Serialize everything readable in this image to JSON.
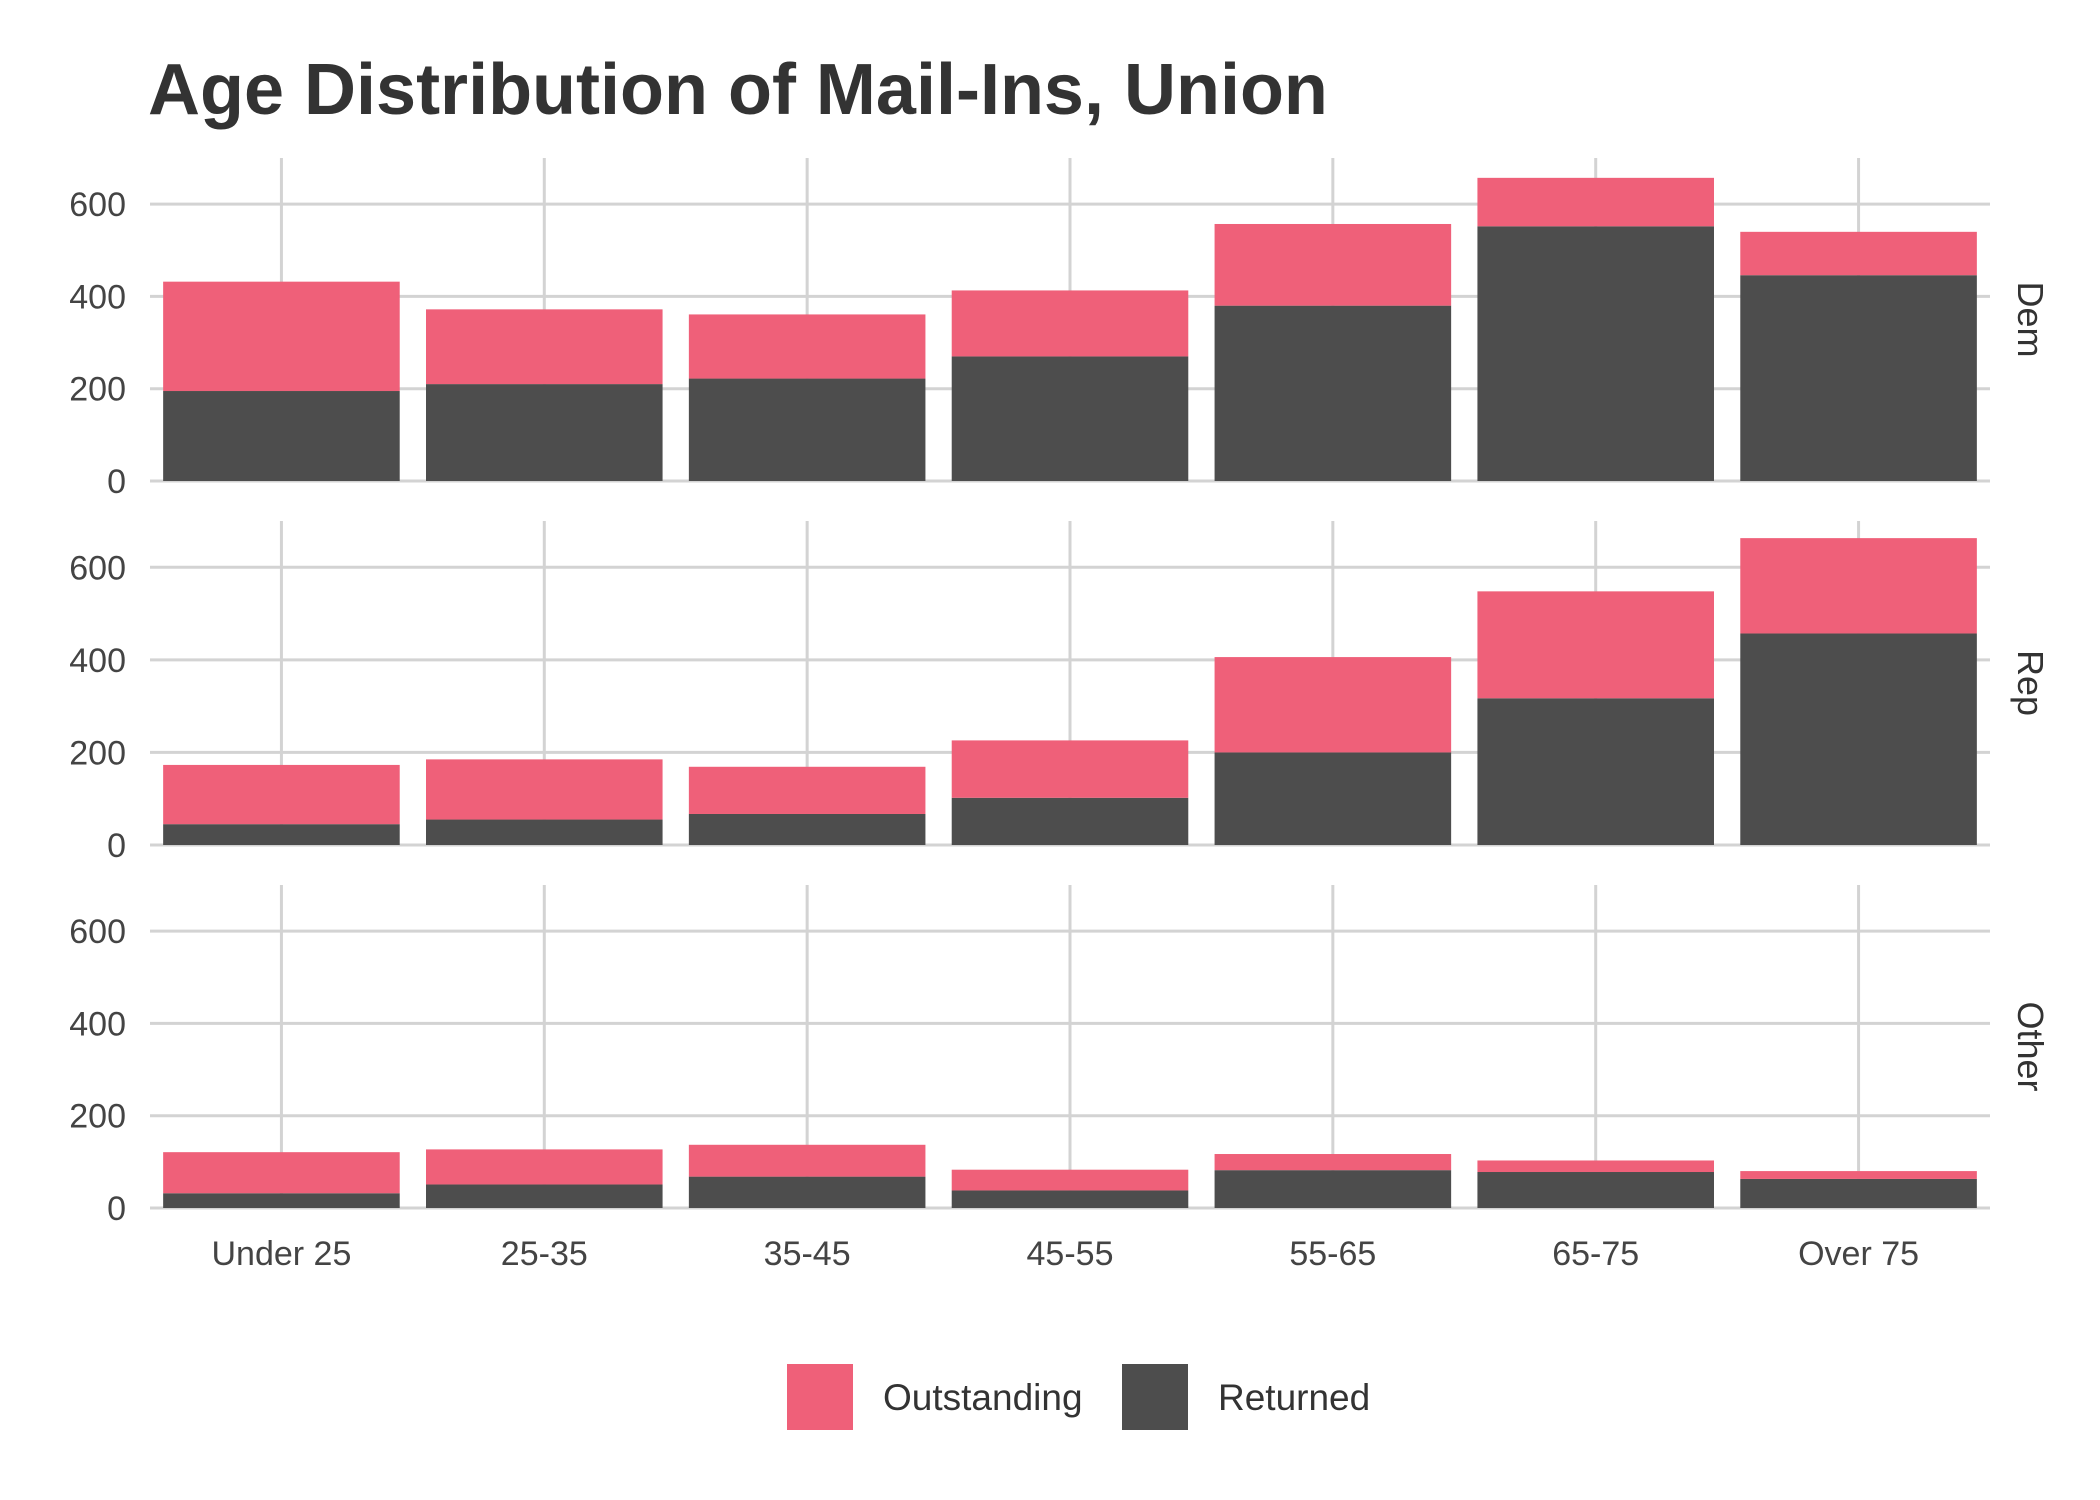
{
  "chart_data": {
    "type": "bar",
    "stacked": true,
    "title": "Age Distribution of Mail-Ins, Union",
    "xlabel": "",
    "ylabel": "",
    "ylim": [
      0,
      700
    ],
    "y_ticks": [
      0,
      200,
      400,
      600
    ],
    "categories": [
      "Under 25",
      "25-35",
      "35-45",
      "45-55",
      "55-65",
      "65-75",
      "Over 75"
    ],
    "grid": true,
    "legend_placement": "bottom",
    "legend": [
      {
        "name": "Outstanding",
        "color": "#ef6079"
      },
      {
        "name": "Returned",
        "color": "#4d4d4d"
      }
    ],
    "panels": [
      {
        "label": "Dem",
        "series": [
          {
            "name": "Returned",
            "values": [
              195,
              210,
              222,
              270,
              380,
              552,
              446
            ]
          },
          {
            "name": "Outstanding",
            "values": [
              237,
              162,
              139,
              143,
              177,
              105,
              94
            ]
          }
        ]
      },
      {
        "label": "Rep",
        "series": [
          {
            "name": "Returned",
            "values": [
              45,
              55,
              67,
              102,
              200,
              317,
              457
            ]
          },
          {
            "name": "Outstanding",
            "values": [
              128,
              130,
              102,
              124,
              206,
              231,
              206
            ]
          }
        ]
      },
      {
        "label": "Other",
        "series": [
          {
            "name": "Returned",
            "values": [
              32,
              51,
              68,
              38,
              82,
              78,
              63
            ]
          },
          {
            "name": "Outstanding",
            "values": [
              89,
              76,
              69,
              45,
              35,
              25,
              17
            ]
          }
        ]
      }
    ]
  }
}
